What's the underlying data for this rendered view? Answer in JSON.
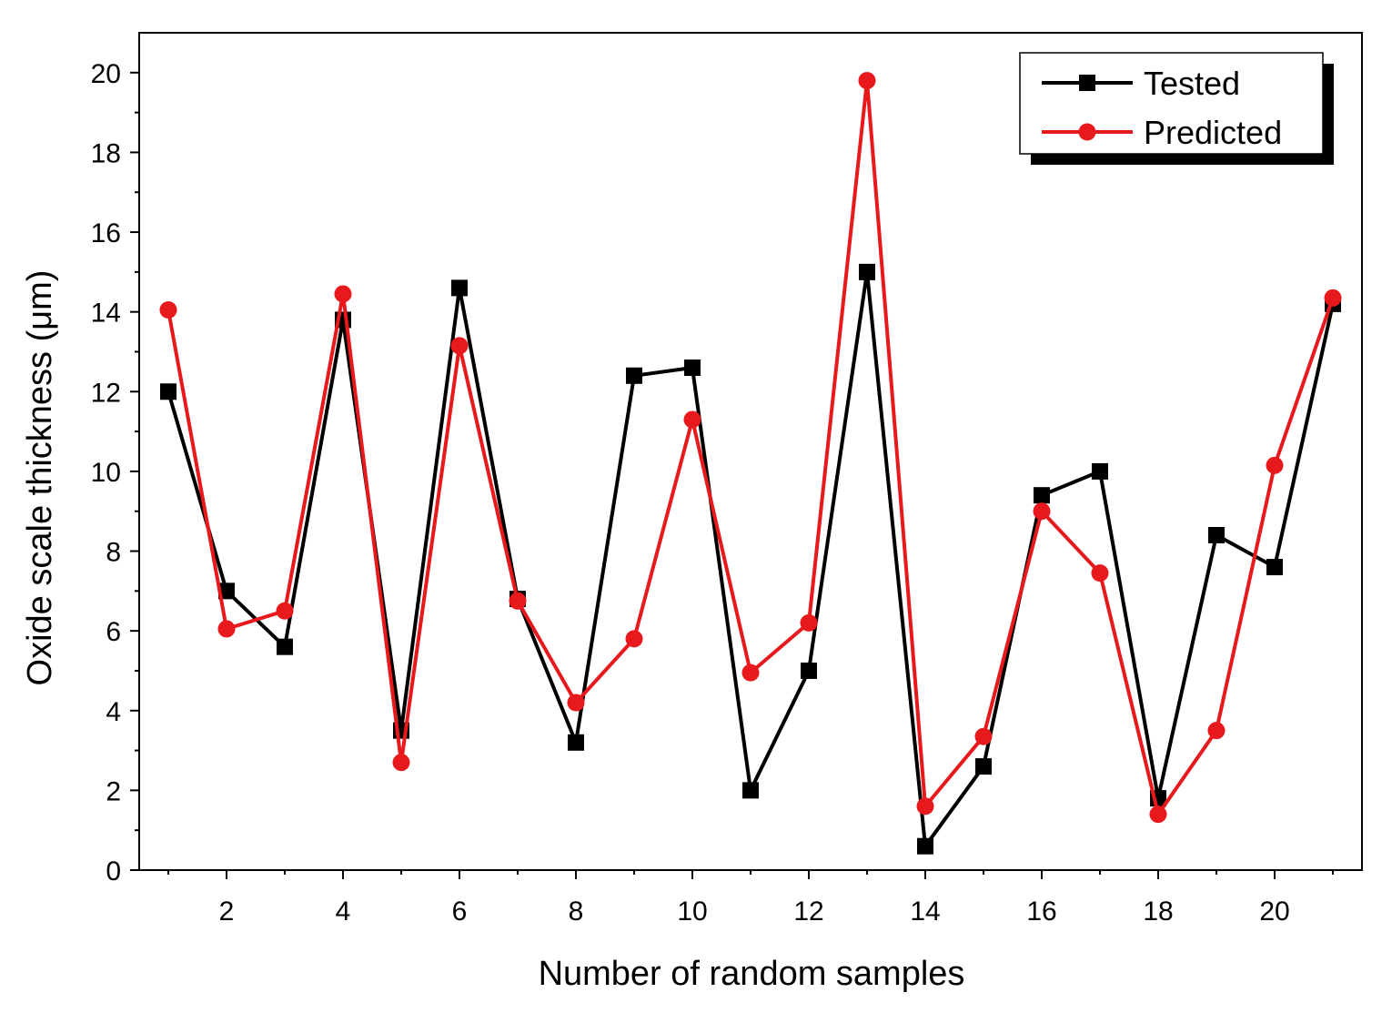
{
  "chart_data": {
    "type": "line",
    "title": "",
    "xlabel": "Number of random samples",
    "ylabel": "Oxide scale thickness (μm)",
    "xlim": [
      0.5,
      21.5
    ],
    "ylim": [
      0,
      21
    ],
    "x": [
      1,
      2,
      3,
      4,
      5,
      6,
      7,
      8,
      9,
      10,
      11,
      12,
      13,
      14,
      15,
      16,
      17,
      18,
      19,
      20,
      21
    ],
    "x_ticks": [
      2,
      4,
      6,
      8,
      10,
      12,
      14,
      16,
      18,
      20
    ],
    "x_tick_labels": [
      "2",
      "4",
      "6",
      "8",
      "10",
      "12",
      "14",
      "16",
      "18",
      "20"
    ],
    "y_ticks": [
      0,
      2,
      4,
      6,
      8,
      10,
      12,
      14,
      16,
      18,
      20
    ],
    "y_tick_labels": [
      "0",
      "2",
      "4",
      "6",
      "8",
      "10",
      "12",
      "14",
      "16",
      "18",
      "20"
    ],
    "grid": false,
    "legend_position": "top-right",
    "series": [
      {
        "name": "Tested",
        "color": "#000000",
        "marker": "square",
        "values": [
          12.0,
          7.0,
          5.6,
          13.8,
          3.5,
          14.6,
          6.8,
          3.2,
          12.4,
          12.6,
          2.0,
          5.0,
          15.0,
          0.6,
          2.6,
          9.4,
          10.0,
          1.8,
          8.4,
          7.6,
          14.2
        ]
      },
      {
        "name": "Predicted",
        "color": "#e8191c",
        "marker": "circle",
        "values": [
          14.05,
          6.05,
          6.5,
          14.45,
          2.7,
          13.15,
          6.75,
          4.2,
          5.8,
          11.3,
          4.95,
          6.2,
          19.8,
          1.6,
          3.35,
          9.0,
          7.45,
          1.4,
          3.5,
          10.15,
          14.35
        ]
      }
    ]
  }
}
